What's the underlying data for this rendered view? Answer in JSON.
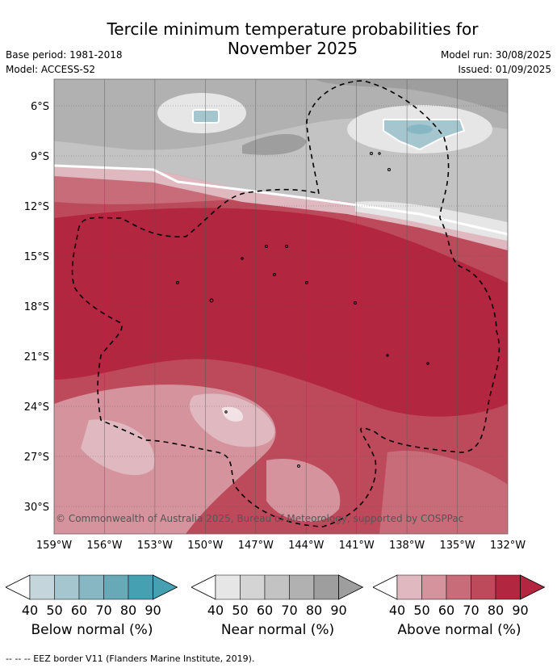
{
  "title": "Tercile minimum temperature probabilities for November 2025",
  "title_line1": "Tercile minimum temperature probabilities for",
  "title_line2": "November 2025",
  "base_period": "Base period: 1981-2018",
  "model": "Model: ACCESS-S2",
  "model_run": "Model run: 30/08/2025",
  "issued": "Issued: 01/09/2025",
  "map": {
    "lon_ticks": [
      "159°W",
      "156°W",
      "153°W",
      "150°W",
      "147°W",
      "144°W",
      "141°W",
      "138°W",
      "135°W",
      "132°W"
    ],
    "lat_ticks": [
      "6°S",
      "9°S",
      "12°S",
      "15°S",
      "18°S",
      "21°S",
      "24°S",
      "27°S",
      "30°S"
    ],
    "copyright": "© Commonwealth of Australia 2025, Bureau of Meteorology, supported by COSPPac"
  },
  "legends": [
    {
      "caption": "Below normal (%)",
      "ticks": [
        "40",
        "50",
        "60",
        "70",
        "80",
        "90"
      ],
      "colors": [
        "#ffffff",
        "#c4d6dc",
        "#a6c6cf",
        "#86b7c3",
        "#68a9b8",
        "#45a0b2"
      ]
    },
    {
      "caption": "Near normal (%)",
      "ticks": [
        "40",
        "50",
        "60",
        "70",
        "80",
        "90"
      ],
      "colors": [
        "#ffffff",
        "#e6e6e6",
        "#d4d4d4",
        "#c3c3c3",
        "#b1b1b1",
        "#9e9e9e"
      ]
    },
    {
      "caption": "Above normal (%)",
      "ticks": [
        "40",
        "50",
        "60",
        "70",
        "80",
        "90"
      ],
      "colors": [
        "#ffffff",
        "#e0b8bf",
        "#d4939d",
        "#c86c79",
        "#bd4a5b",
        "#b3263f"
      ]
    }
  ],
  "footnote": "--  --  -- EEZ border V11 (Flanders Marine Institute, 2019)."
}
